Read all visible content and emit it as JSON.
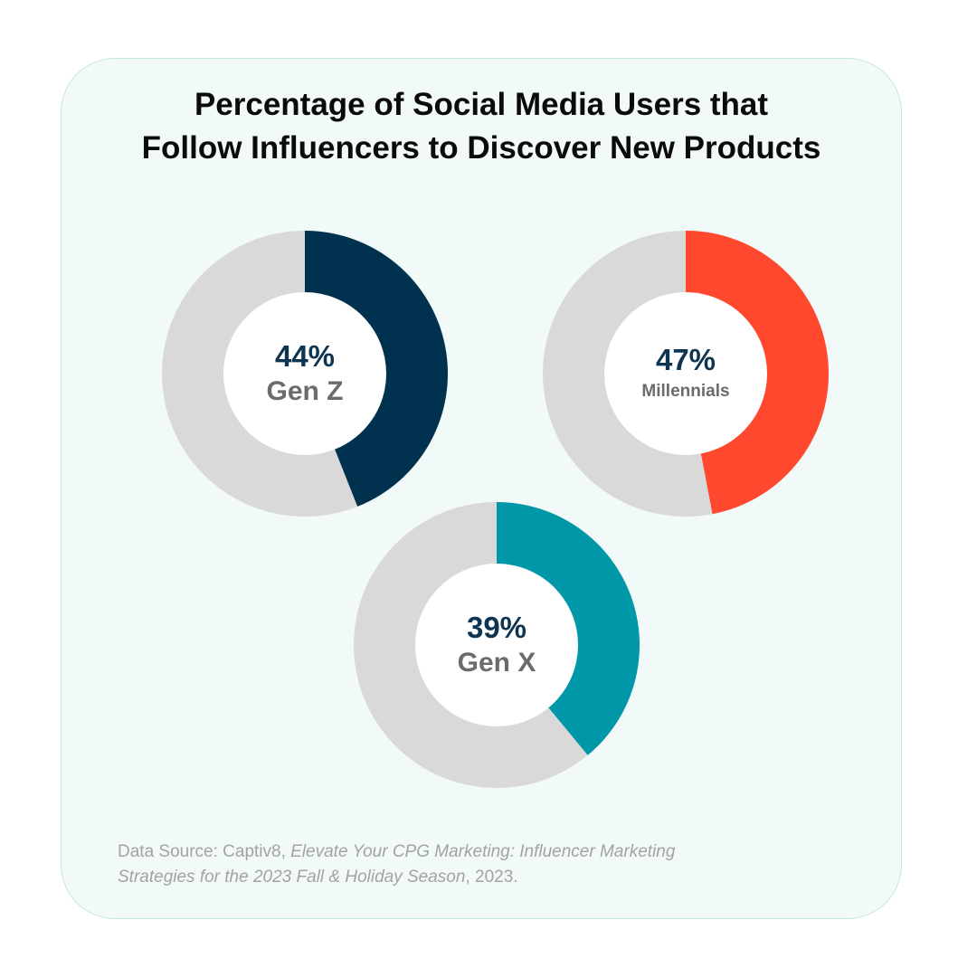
{
  "title": {
    "line1": "Percentage of Social Media Users that",
    "line2": "Follow Influencers to Discover New Products"
  },
  "chart_data": {
    "type": "pie",
    "title": "Percentage of Social Media Users that Follow Influencers to Discover New Products",
    "series": [
      {
        "name": "Gen Z",
        "label": "44%",
        "value": 44,
        "color": "#00324f"
      },
      {
        "name": "Millennials",
        "label": "47%",
        "value": 47,
        "color": "#ff482e"
      },
      {
        "name": "Gen X",
        "label": "39%",
        "value": 39,
        "color": "#0098a9"
      }
    ],
    "track_color": "#d9d9d9"
  },
  "source": {
    "prefix": "Data Source: Captiv8, ",
    "italic1": "Elevate Your CPG Marketing: Influencer Marketing",
    "italic2": "Strategies for the 2023 Fall & Holiday Season",
    "suffix": ", 2023."
  }
}
